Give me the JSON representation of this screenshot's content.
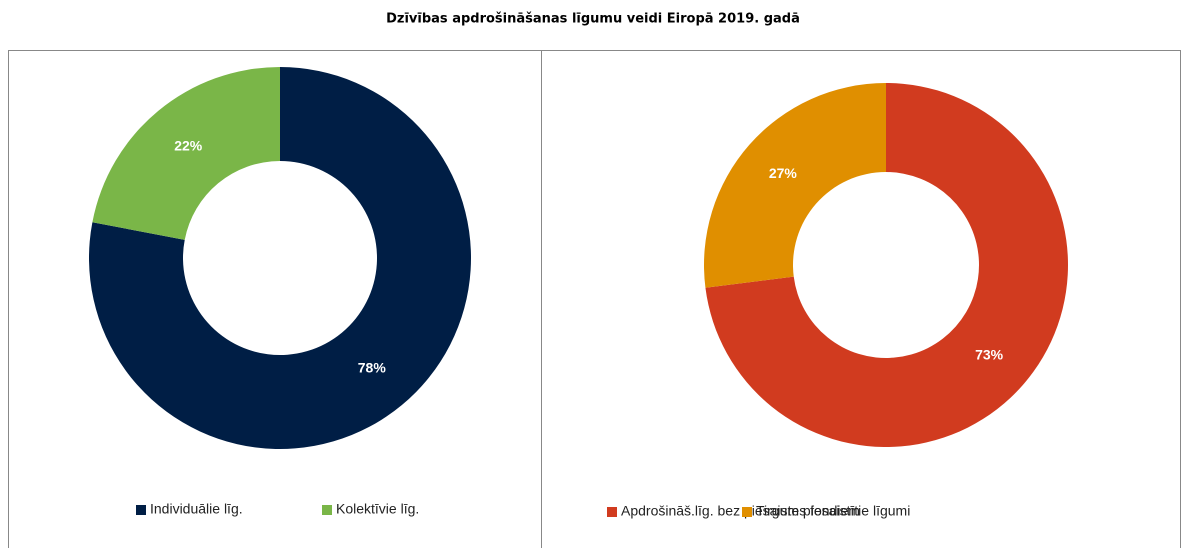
{
  "title": "Dzīvības apdrošināšanas līgumu veidi Eiropā 2019. gadā",
  "chart_data": [
    {
      "type": "pie",
      "categories": [
        "Individuālie līg.",
        "Kolektīvie līg."
      ],
      "values": [
        78,
        22
      ],
      "value_labels": [
        "78%",
        "22%"
      ],
      "colors": [
        "#001e45",
        "#7ab648"
      ],
      "donut": true,
      "legend": "bottom"
    },
    {
      "type": "pie",
      "categories": [
        "Apdrošināš.līg. bez piesaistes fondiem",
        "Tirgum piesaistītie līgumi"
      ],
      "values": [
        73,
        27
      ],
      "value_labels": [
        "73%",
        "27%"
      ],
      "colors": [
        "#d13b1f",
        "#e08f00"
      ],
      "donut": true,
      "legend": "bottom"
    }
  ]
}
